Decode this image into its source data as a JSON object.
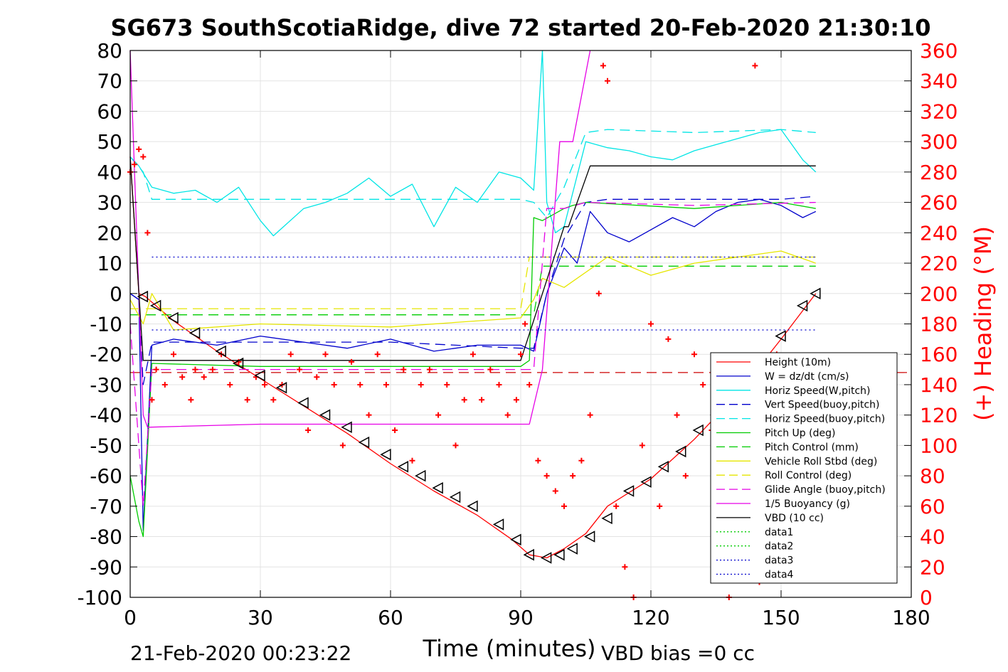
{
  "chart_data": {
    "type": "line",
    "title": "SG673 SouthScotiaRidge, dive 72 started 20-Feb-2020 21:30:10",
    "xlabel": "Time (minutes)",
    "ylabel": "",
    "ylabel_right": "(+) Heading (°M)",
    "xlim": [
      0,
      180
    ],
    "ylim": [
      -100,
      80
    ],
    "ylim_right": [
      0,
      360
    ],
    "x_ticks": [
      "0",
      "30",
      "60",
      "90",
      "120",
      "150",
      "180"
    ],
    "y_ticks": [
      "80",
      "70",
      "60",
      "50",
      "40",
      "30",
      "20",
      "10",
      "0",
      "-10",
      "-20",
      "-30",
      "-40",
      "-50",
      "-60",
      "-70",
      "-80",
      "-90",
      "-100"
    ],
    "y_ticks_right": [
      "360",
      "340",
      "320",
      "300",
      "280",
      "260",
      "240",
      "220",
      "200",
      "180",
      "160",
      "140",
      "120",
      "100",
      "80",
      "60",
      "40",
      "20",
      "0"
    ],
    "grid": true,
    "footer_left": "21-Feb-2020 00:23:22",
    "footer_right": "VBD bias =0 cc",
    "legend_position": "bottom-right",
    "series": [
      {
        "name": "Height (10m)",
        "color": "#ff0000",
        "style": "solid",
        "x": [
          0,
          2,
          3.5,
          10,
          20,
          30,
          40,
          50,
          60,
          70,
          80,
          88,
          92,
          96,
          100,
          105,
          110,
          120,
          130,
          140,
          150,
          158
        ],
        "y": [
          45,
          0,
          -1,
          -9,
          -19,
          -28,
          -37,
          -46,
          -56,
          -65,
          -73,
          -81,
          -86,
          -87,
          -84,
          -79,
          -70,
          -61,
          -48,
          -33,
          -15,
          0
        ]
      },
      {
        "name": "W = dz/dt (cm/s)",
        "color": "#0000cc",
        "style": "solid",
        "x": [
          0,
          2,
          3,
          5,
          10,
          20,
          30,
          40,
          50,
          60,
          70,
          80,
          90,
          93,
          96,
          100,
          103,
          106,
          110,
          115,
          120,
          125,
          130,
          135,
          140,
          145,
          150,
          155,
          158
        ],
        "y": [
          0,
          -2,
          -78,
          -17,
          -15,
          -17,
          -14,
          -16,
          -18,
          -15,
          -19,
          -17,
          -17,
          -19,
          0,
          15,
          10,
          27,
          20,
          17,
          21,
          25,
          22,
          27,
          30,
          31,
          29,
          25,
          27
        ]
      },
      {
        "name": "Horiz Speed(W,pitch)",
        "color": "#00e5e5",
        "style": "solid",
        "x": [
          0,
          2,
          5,
          10,
          15,
          20,
          25,
          30,
          33,
          40,
          45,
          50,
          55,
          60,
          65,
          70,
          75,
          80,
          85,
          90,
          93,
          95,
          96,
          98,
          100,
          105,
          110,
          115,
          120,
          125,
          130,
          135,
          140,
          145,
          150,
          155,
          158
        ],
        "y": [
          45,
          42,
          35,
          33,
          34,
          30,
          35,
          24,
          19,
          28,
          30,
          33,
          38,
          32,
          36,
          22,
          35,
          30,
          40,
          38,
          34,
          80,
          30,
          20,
          22,
          50,
          48,
          47,
          45,
          44,
          47,
          49,
          51,
          53,
          54,
          44,
          40
        ]
      },
      {
        "name": "Vert Speed(buoy,pitch)",
        "color": "#0000cc",
        "style": "dashed",
        "x": [
          0,
          2,
          3,
          5,
          10,
          30,
          60,
          90,
          93,
          96,
          100,
          105,
          110,
          130,
          150,
          158
        ],
        "y": [
          0,
          -2,
          -30,
          -16,
          -16,
          -16,
          -16,
          -18,
          -18,
          0,
          18,
          30,
          31,
          31,
          31,
          32
        ]
      },
      {
        "name": "Horiz Speed(buoy,pitch)",
        "color": "#00e5e5",
        "style": "dashed",
        "x": [
          0,
          3,
          5,
          30,
          60,
          90,
          93,
          96,
          100,
          105,
          110,
          130,
          150,
          158
        ],
        "y": [
          45,
          40,
          31,
          31,
          31,
          31,
          30,
          25,
          35,
          53,
          54,
          53,
          54,
          53
        ]
      },
      {
        "name": "Pitch Up (deg)",
        "color": "#00cc00",
        "style": "solid",
        "x": [
          0,
          2,
          3,
          5,
          30,
          60,
          90,
          92,
          93,
          95,
          100,
          102,
          105,
          130,
          150,
          158
        ],
        "y": [
          -60,
          -75,
          -80,
          -23,
          -24,
          -24,
          -24,
          -22,
          25,
          24,
          28,
          29,
          30,
          28,
          30,
          28
        ]
      },
      {
        "name": "Pitch Control (mm)",
        "color": "#00cc00",
        "style": "dashed",
        "x": [
          0,
          3,
          5,
          90,
          93,
          95,
          158
        ],
        "y": [
          -7,
          -7,
          -7,
          -7,
          -7,
          9,
          9
        ]
      },
      {
        "name": "Vehicle Roll Stbd (deg)",
        "color": "#e6e600",
        "style": "solid",
        "x": [
          0,
          3,
          5,
          10,
          30,
          60,
          90,
          93,
          95,
          100,
          110,
          120,
          130,
          140,
          150,
          158
        ],
        "y": [
          -2,
          -10,
          0,
          -12,
          -10,
          -11,
          -8,
          -2,
          5,
          2,
          12,
          6,
          10,
          12,
          14,
          10
        ]
      },
      {
        "name": "Roll Control (deg)",
        "color": "#e6e600",
        "style": "dashed",
        "x": [
          0,
          90,
          92,
          158
        ],
        "y": [
          -5,
          -5,
          12,
          12
        ]
      },
      {
        "name": "Glide Angle (buoy,pitch)",
        "color": "#e600e6",
        "style": "dashed",
        "x": [
          0,
          3,
          5,
          90,
          93,
          96,
          100,
          105,
          130,
          158
        ],
        "y": [
          -10,
          -70,
          -25,
          -25,
          -25,
          28,
          28,
          30,
          29,
          30
        ]
      },
      {
        "name": "1/5 Buoyancy (g)",
        "color": "#e600e6",
        "style": "solid",
        "x": [
          0,
          3,
          4,
          30,
          60,
          92,
          95,
          99,
          102,
          106
        ],
        "y": [
          80,
          -40,
          -44,
          -43,
          -43,
          -43,
          -25,
          50,
          50,
          80
        ]
      },
      {
        "name": "VBD (10 cc)",
        "color": "#000000",
        "style": "solid",
        "x": [
          0,
          3,
          5,
          90,
          95,
          100,
          101,
          106,
          158
        ],
        "y": [
          45,
          -22,
          -22,
          -22,
          0,
          22,
          22,
          42,
          42
        ]
      },
      {
        "name": "data1",
        "color": "#00cc00",
        "style": "dotted",
        "x": [],
        "y": []
      },
      {
        "name": "data2",
        "color": "#00cc00",
        "style": "dotted",
        "x": [],
        "y": []
      },
      {
        "name": "data3",
        "color": "#0000cc",
        "style": "dotted",
        "x": [
          5,
          158
        ],
        "y": [
          12,
          12
        ]
      },
      {
        "name": "data4",
        "color": "#0000cc",
        "style": "dotted",
        "x": [
          5,
          158
        ],
        "y": [
          -12,
          -12
        ]
      }
    ],
    "reference_lines": [
      {
        "name": "heading-ref",
        "color": "#cc0000",
        "style": "dashed",
        "axis": "right",
        "x": [
          0,
          180
        ],
        "y": [
          148,
          148
        ]
      }
    ],
    "heading_series": {
      "name": "Heading",
      "color": "#ff0000",
      "marker": "+",
      "axis": "right",
      "x": [
        0,
        1,
        2,
        3,
        4,
        5,
        6,
        8,
        10,
        12,
        14,
        15,
        17,
        19,
        21,
        23,
        25,
        27,
        29,
        31,
        33,
        35,
        37,
        39,
        41,
        43,
        45,
        47,
        49,
        51,
        53,
        55,
        57,
        59,
        61,
        63,
        65,
        67,
        69,
        71,
        73,
        75,
        77,
        79,
        81,
        83,
        85,
        87,
        89,
        90,
        91,
        92,
        94,
        96,
        98,
        100,
        102,
        104,
        106,
        108,
        109,
        110,
        112,
        114,
        116,
        118,
        120,
        122,
        124,
        126,
        128,
        130,
        132,
        134,
        136,
        138,
        140,
        142,
        144,
        145,
        147,
        149,
        151
      ],
      "y": [
        280,
        285,
        295,
        290,
        240,
        130,
        150,
        140,
        160,
        145,
        130,
        150,
        145,
        150,
        160,
        140,
        155,
        130,
        145,
        140,
        130,
        140,
        160,
        150,
        110,
        145,
        160,
        140,
        100,
        155,
        140,
        120,
        160,
        140,
        110,
        150,
        90,
        140,
        150,
        120,
        140,
        100,
        130,
        160,
        130,
        150,
        140,
        120,
        130,
        160,
        180,
        140,
        90,
        80,
        70,
        60,
        80,
        90,
        120,
        200,
        350,
        340,
        60,
        20,
        0,
        100,
        180,
        60,
        170,
        120,
        80,
        160,
        140,
        110,
        60,
        0,
        20,
        140,
        350,
        10,
        100,
        160,
        120
      ]
    },
    "markers": {
      "name": "Depth markers",
      "color": "#000000",
      "marker": "triangle-left",
      "x": [
        3,
        6,
        10,
        15,
        21,
        25,
        30,
        35,
        40,
        45,
        50,
        54,
        59,
        63,
        67,
        71,
        75,
        79,
        85,
        89,
        92,
        96,
        99,
        102,
        106,
        110,
        115,
        119,
        123,
        127,
        131,
        135,
        140,
        145,
        150,
        155,
        158
      ],
      "y": [
        -1,
        -4,
        -8,
        -13,
        -19,
        -23,
        -27,
        -31,
        -36,
        -40,
        -44,
        -49,
        -53,
        -57,
        -60,
        -64,
        -67,
        -70,
        -76,
        -81,
        -86,
        -87,
        -86,
        -84,
        -80,
        -74,
        -65,
        -62,
        -57,
        -52,
        -45,
        -40,
        -33,
        -24,
        -14,
        -4,
        0
      ]
    }
  }
}
